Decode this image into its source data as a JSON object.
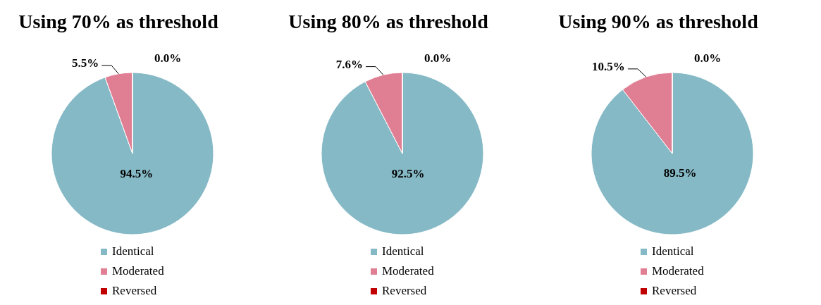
{
  "chart_data": [
    {
      "type": "pie",
      "title": "Using 70% as threshold",
      "categories": [
        "Identical",
        "Moderated",
        "Reversed"
      ],
      "values": [
        94.5,
        5.5,
        0.0
      ],
      "value_labels": [
        "94.5%",
        "5.5%",
        "0.0%"
      ],
      "colors": [
        "#85b9c6",
        "#e07f93",
        "#c00000"
      ],
      "legend": "bottom"
    },
    {
      "type": "pie",
      "title": "Using 80% as threshold",
      "categories": [
        "Identical",
        "Moderated",
        "Reversed"
      ],
      "values": [
        92.5,
        7.6,
        0.0
      ],
      "value_labels": [
        "92.5%",
        "7.6%",
        "0.0%"
      ],
      "colors": [
        "#85b9c6",
        "#e07f93",
        "#c00000"
      ],
      "legend": "bottom"
    },
    {
      "type": "pie",
      "title": "Using 90% as threshold",
      "categories": [
        "Identical",
        "Moderated",
        "Reversed"
      ],
      "values": [
        89.5,
        10.5,
        0.0
      ],
      "value_labels": [
        "89.5%",
        "10.5%",
        "0.0%"
      ],
      "colors": [
        "#85b9c6",
        "#e07f93",
        "#c00000"
      ],
      "legend": "bottom"
    }
  ]
}
